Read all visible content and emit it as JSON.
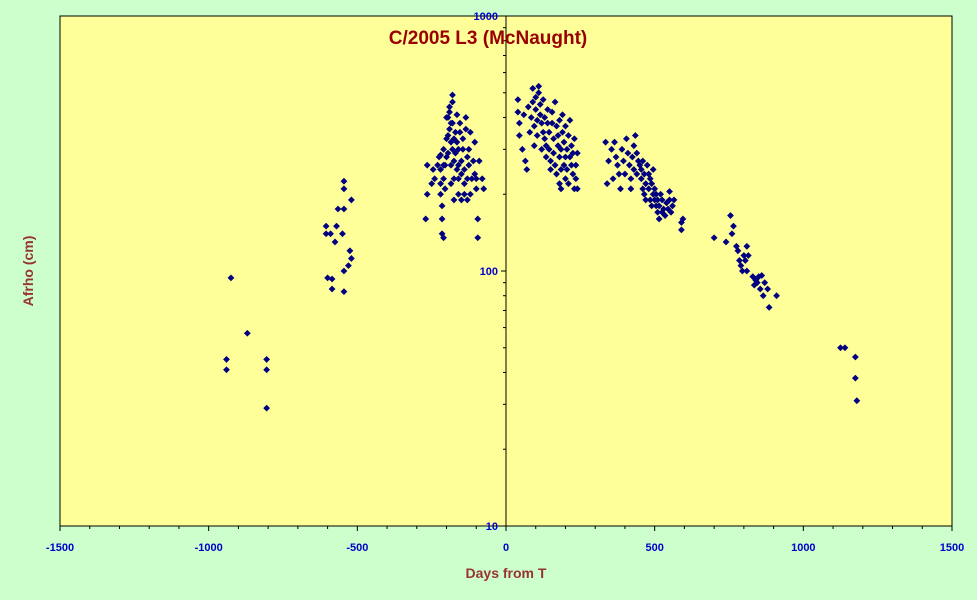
{
  "chart_data": {
    "type": "scatter",
    "title": "C/2005 L3 (McNaught)",
    "xlabel": "Days from T",
    "ylabel": "Afrho (cm)",
    "xlim": [
      -1500,
      1500
    ],
    "ylim": [
      10,
      1000
    ],
    "yscale": "log",
    "x_ticks": [
      -1500,
      -1000,
      -500,
      0,
      500,
      1000,
      1500
    ],
    "y_ticks": [
      10,
      100,
      1000
    ],
    "grid": false,
    "colors": {
      "background": "#ccffcc",
      "plot_area": "#ffff99",
      "marker": "#000080",
      "title": "#990000",
      "axis_title": "#993333",
      "tick_label": "#0000cc"
    },
    "series": [
      {
        "marker": "diamond",
        "points": [
          [
            -940,
            45
          ],
          [
            -940,
            41
          ],
          [
            -925,
            94
          ],
          [
            -870,
            57
          ],
          [
            -805,
            45
          ],
          [
            -805,
            41
          ],
          [
            -805,
            29
          ],
          [
            -605,
            150
          ],
          [
            -605,
            140
          ],
          [
            -600,
            94
          ],
          [
            -590,
            140
          ],
          [
            -585,
            85
          ],
          [
            -585,
            93
          ],
          [
            -575,
            130
          ],
          [
            -570,
            150
          ],
          [
            -565,
            175
          ],
          [
            -550,
            140
          ],
          [
            -545,
            225
          ],
          [
            -545,
            210
          ],
          [
            -545,
            175
          ],
          [
            -545,
            100
          ],
          [
            -545,
            83
          ],
          [
            -530,
            105
          ],
          [
            -525,
            120
          ],
          [
            -520,
            190
          ],
          [
            -520,
            112
          ],
          [
            -270,
            160
          ],
          [
            -265,
            200
          ],
          [
            -265,
            260
          ],
          [
            -250,
            220
          ],
          [
            -245,
            250
          ],
          [
            -240,
            230
          ],
          [
            -230,
            260
          ],
          [
            -225,
            280
          ],
          [
            -220,
            200
          ],
          [
            -220,
            220
          ],
          [
            -220,
            250
          ],
          [
            -220,
            285
          ],
          [
            -215,
            180
          ],
          [
            -215,
            160
          ],
          [
            -215,
            140
          ],
          [
            -210,
            135
          ],
          [
            -210,
            230
          ],
          [
            -210,
            260
          ],
          [
            -210,
            300
          ],
          [
            -205,
            210
          ],
          [
            -205,
            260
          ],
          [
            -200,
            280
          ],
          [
            -200,
            330
          ],
          [
            -200,
            400
          ],
          [
            -195,
            290
          ],
          [
            -195,
            340
          ],
          [
            -195,
            400
          ],
          [
            -190,
            360
          ],
          [
            -190,
            420
          ],
          [
            -190,
            440
          ],
          [
            -185,
            380
          ],
          [
            -185,
            320
          ],
          [
            -185,
            260
          ],
          [
            -185,
            220
          ],
          [
            -180,
            490
          ],
          [
            -180,
            460
          ],
          [
            -180,
            380
          ],
          [
            -180,
            300
          ],
          [
            -175,
            330
          ],
          [
            -175,
            270
          ],
          [
            -175,
            230
          ],
          [
            -175,
            190
          ],
          [
            -170,
            290
          ],
          [
            -170,
            350
          ],
          [
            -165,
            250
          ],
          [
            -165,
            320
          ],
          [
            -165,
            410
          ],
          [
            -160,
            200
          ],
          [
            -160,
            230
          ],
          [
            -160,
            260
          ],
          [
            -160,
            300
          ],
          [
            -155,
            350
          ],
          [
            -155,
            380
          ],
          [
            -150,
            270
          ],
          [
            -150,
            240
          ],
          [
            -150,
            190
          ],
          [
            -145,
            330
          ],
          [
            -145,
            300
          ],
          [
            -140,
            250
          ],
          [
            -140,
            220
          ],
          [
            -140,
            200
          ],
          [
            -135,
            400
          ],
          [
            -135,
            360
          ],
          [
            -130,
            280
          ],
          [
            -130,
            230
          ],
          [
            -130,
            190
          ],
          [
            -125,
            260
          ],
          [
            -125,
            300
          ],
          [
            -120,
            350
          ],
          [
            -120,
            200
          ],
          [
            -115,
            230
          ],
          [
            -110,
            270
          ],
          [
            -105,
            320
          ],
          [
            -105,
            240
          ],
          [
            -100,
            230
          ],
          [
            -100,
            210
          ],
          [
            -95,
            160
          ],
          [
            -95,
            135
          ],
          [
            -90,
            270
          ],
          [
            -80,
            230
          ],
          [
            -75,
            210
          ],
          [
            40,
            470
          ],
          [
            40,
            420
          ],
          [
            45,
            380
          ],
          [
            45,
            340
          ],
          [
            55,
            300
          ],
          [
            60,
            410
          ],
          [
            65,
            270
          ],
          [
            70,
            250
          ],
          [
            75,
            440
          ],
          [
            80,
            350
          ],
          [
            85,
            400
          ],
          [
            90,
            460
          ],
          [
            90,
            520
          ],
          [
            95,
            310
          ],
          [
            95,
            370
          ],
          [
            100,
            480
          ],
          [
            100,
            430
          ],
          [
            105,
            390
          ],
          [
            105,
            340
          ],
          [
            110,
            530
          ],
          [
            110,
            500
          ],
          [
            115,
            450
          ],
          [
            115,
            410
          ],
          [
            120,
            380
          ],
          [
            120,
            300
          ],
          [
            125,
            470
          ],
          [
            125,
            350
          ],
          [
            130,
            400
          ],
          [
            130,
            330
          ],
          [
            135,
            310
          ],
          [
            135,
            280
          ],
          [
            140,
            380
          ],
          [
            140,
            430
          ],
          [
            145,
            350
          ],
          [
            145,
            300
          ],
          [
            150,
            270
          ],
          [
            150,
            250
          ],
          [
            155,
            420
          ],
          [
            155,
            380
          ],
          [
            160,
            330
          ],
          [
            160,
            290
          ],
          [
            165,
            460
          ],
          [
            165,
            260
          ],
          [
            170,
            240
          ],
          [
            170,
            370
          ],
          [
            175,
            340
          ],
          [
            175,
            310
          ],
          [
            180,
            220
          ],
          [
            180,
            280
          ],
          [
            180,
            390
          ],
          [
            185,
            210
          ],
          [
            185,
            250
          ],
          [
            185,
            300
          ],
          [
            190,
            350
          ],
          [
            190,
            410
          ],
          [
            195,
            260
          ],
          [
            195,
            320
          ],
          [
            200,
            230
          ],
          [
            200,
            280
          ],
          [
            200,
            370
          ],
          [
            205,
            300
          ],
          [
            205,
            250
          ],
          [
            210,
            340
          ],
          [
            210,
            220
          ],
          [
            215,
            390
          ],
          [
            215,
            280
          ],
          [
            220,
            260
          ],
          [
            220,
            310
          ],
          [
            225,
            240
          ],
          [
            225,
            290
          ],
          [
            230,
            210
          ],
          [
            230,
            330
          ],
          [
            235,
            260
          ],
          [
            235,
            230
          ],
          [
            240,
            290
          ],
          [
            240,
            210
          ],
          [
            335,
            320
          ],
          [
            340,
            220
          ],
          [
            345,
            270
          ],
          [
            355,
            300
          ],
          [
            360,
            230
          ],
          [
            365,
            320
          ],
          [
            370,
            280
          ],
          [
            375,
            260
          ],
          [
            380,
            240
          ],
          [
            385,
            210
          ],
          [
            390,
            300
          ],
          [
            395,
            270
          ],
          [
            400,
            240
          ],
          [
            405,
            330
          ],
          [
            410,
            290
          ],
          [
            415,
            260
          ],
          [
            420,
            230
          ],
          [
            420,
            210
          ],
          [
            425,
            280
          ],
          [
            430,
            310
          ],
          [
            430,
            250
          ],
          [
            435,
            340
          ],
          [
            440,
            290
          ],
          [
            440,
            240
          ],
          [
            445,
            270
          ],
          [
            450,
            260
          ],
          [
            455,
            230
          ],
          [
            455,
            250
          ],
          [
            460,
            210
          ],
          [
            460,
            270
          ],
          [
            465,
            240
          ],
          [
            465,
            200
          ],
          [
            470,
            190
          ],
          [
            470,
            220
          ],
          [
            475,
            260
          ],
          [
            480,
            240
          ],
          [
            480,
            210
          ],
          [
            485,
            190
          ],
          [
            485,
            230
          ],
          [
            490,
            180
          ],
          [
            490,
            220
          ],
          [
            495,
            200
          ],
          [
            495,
            250
          ],
          [
            500,
            190
          ],
          [
            500,
            210
          ],
          [
            505,
            180
          ],
          [
            505,
            200
          ],
          [
            510,
            170
          ],
          [
            510,
            190
          ],
          [
            515,
            160
          ],
          [
            515,
            180
          ],
          [
            520,
            200
          ],
          [
            525,
            170
          ],
          [
            525,
            190
          ],
          [
            530,
            175
          ],
          [
            535,
            165
          ],
          [
            540,
            185
          ],
          [
            545,
            175
          ],
          [
            550,
            190
          ],
          [
            550,
            205
          ],
          [
            555,
            170
          ],
          [
            560,
            180
          ],
          [
            565,
            190
          ],
          [
            590,
            155
          ],
          [
            590,
            145
          ],
          [
            595,
            160
          ],
          [
            700,
            135
          ],
          [
            740,
            130
          ],
          [
            755,
            165
          ],
          [
            760,
            140
          ],
          [
            765,
            150
          ],
          [
            775,
            125
          ],
          [
            780,
            120
          ],
          [
            785,
            110
          ],
          [
            790,
            105
          ],
          [
            795,
            100
          ],
          [
            800,
            115
          ],
          [
            805,
            110
          ],
          [
            810,
            125
          ],
          [
            810,
            100
          ],
          [
            815,
            115
          ],
          [
            830,
            95
          ],
          [
            835,
            88
          ],
          [
            840,
            92
          ],
          [
            845,
            90
          ],
          [
            850,
            95
          ],
          [
            855,
            85
          ],
          [
            860,
            96
          ],
          [
            865,
            80
          ],
          [
            870,
            90
          ],
          [
            880,
            85
          ],
          [
            885,
            72
          ],
          [
            910,
            80
          ],
          [
            1125,
            50
          ],
          [
            1140,
            50
          ],
          [
            1175,
            46
          ],
          [
            1175,
            38
          ],
          [
            1180,
            31
          ]
        ]
      }
    ]
  }
}
